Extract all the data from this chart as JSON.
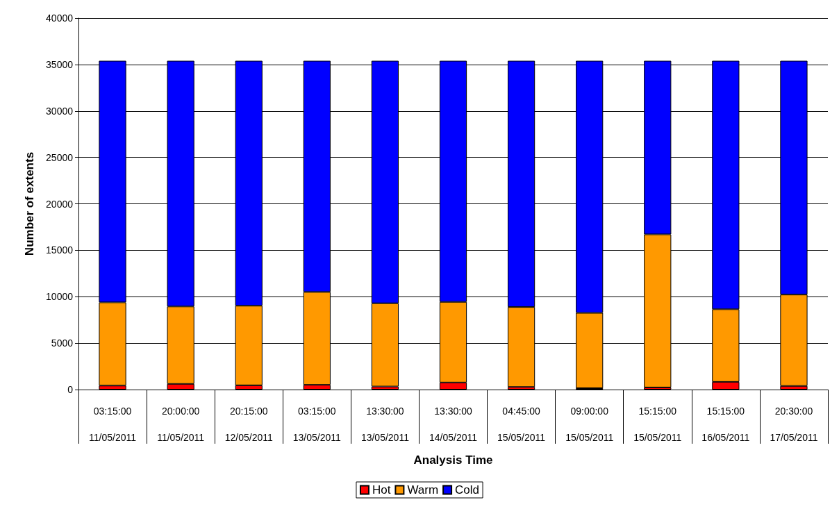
{
  "chart_data": {
    "type": "bar",
    "stacked": true,
    "xlabel": "Analysis Time",
    "ylabel": "Number of extents",
    "categories": [
      "03:15:00\n11/05/2011",
      "20:00:00\n11/05/2011",
      "20:15:00\n12/05/2011",
      "03:15:00\n13/05/2011",
      "13:30:00\n13/05/2011",
      "13:30:00\n14/05/2011",
      "04:45:00\n15/05/2011",
      "09:00:00\n15/05/2011",
      "15:15:00\n15/05/2011",
      "15:15:00\n16/05/2011",
      "20:30:00\n17/05/2011"
    ],
    "series": [
      {
        "name": "Hot",
        "color": "#ff0000",
        "values": [
          430,
          610,
          460,
          510,
          330,
          760,
          280,
          150,
          230,
          830,
          390
        ]
      },
      {
        "name": "Warm",
        "color": "#ff9900",
        "values": [
          8960,
          8340,
          8570,
          10000,
          8960,
          8680,
          8610,
          8110,
          16480,
          7820,
          9840
        ]
      },
      {
        "name": "Cold",
        "color": "#0000ff",
        "values": [
          26010,
          26450,
          26370,
          24890,
          26110,
          25960,
          26510,
          27140,
          18690,
          26750,
          25170
        ]
      }
    ],
    "ylim": [
      0,
      40000
    ],
    "yticks": [
      0,
      5000,
      10000,
      15000,
      20000,
      25000,
      30000,
      35000,
      40000
    ],
    "grid": "y",
    "legend": "bottom"
  }
}
